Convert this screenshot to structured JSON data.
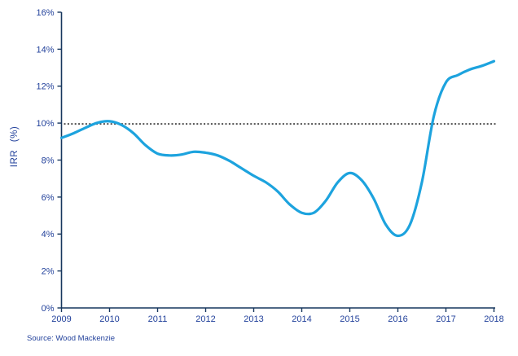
{
  "chart": {
    "y_axis_title": "IRR (%)",
    "source_note": "Source: Wood Mackenzie",
    "colors": {
      "series_line": "#1da3de",
      "axis": "#17375e",
      "tick_label": "#22419b",
      "reference_line": "#4d4d4d",
      "background": "#ffffff"
    }
  },
  "chart_data": {
    "type": "line",
    "title": "",
    "xlabel": "",
    "ylabel": "IRR (%)",
    "ylim": [
      0,
      16
    ],
    "xlim": [
      2009,
      2018
    ],
    "grid": false,
    "legend": "none",
    "yticks": [
      0,
      2,
      4,
      6,
      8,
      10,
      12,
      14,
      16
    ],
    "ytick_labels": [
      "0%",
      "2%",
      "4%",
      "6%",
      "8%",
      "10%",
      "12%",
      "14%",
      "16%"
    ],
    "xticks": [
      2009,
      2010,
      2011,
      2012,
      2013,
      2014,
      2015,
      2016,
      2017,
      2018
    ],
    "xtick_labels": [
      "2009",
      "2010",
      "2011",
      "2012",
      "2013",
      "2014",
      "2015",
      "2016",
      "2017",
      "2018"
    ],
    "reference_line": {
      "value": 10,
      "style": "dotted"
    },
    "series": [
      {
        "name": "IRR",
        "points": [
          [
            2009.0,
            9.2
          ],
          [
            2009.25,
            9.45
          ],
          [
            2009.5,
            9.75
          ],
          [
            2009.75,
            10.02
          ],
          [
            2010.0,
            10.1
          ],
          [
            2010.25,
            9.9
          ],
          [
            2010.5,
            9.45
          ],
          [
            2010.75,
            8.8
          ],
          [
            2011.0,
            8.35
          ],
          [
            2011.25,
            8.25
          ],
          [
            2011.5,
            8.3
          ],
          [
            2011.75,
            8.45
          ],
          [
            2012.0,
            8.4
          ],
          [
            2012.25,
            8.25
          ],
          [
            2012.5,
            7.95
          ],
          [
            2012.75,
            7.55
          ],
          [
            2013.0,
            7.15
          ],
          [
            2013.25,
            6.8
          ],
          [
            2013.5,
            6.3
          ],
          [
            2013.75,
            5.6
          ],
          [
            2014.0,
            5.15
          ],
          [
            2014.25,
            5.15
          ],
          [
            2014.5,
            5.8
          ],
          [
            2014.75,
            6.8
          ],
          [
            2015.0,
            7.3
          ],
          [
            2015.25,
            6.9
          ],
          [
            2015.5,
            5.9
          ],
          [
            2015.75,
            4.5
          ],
          [
            2016.0,
            3.9
          ],
          [
            2016.25,
            4.5
          ],
          [
            2016.5,
            6.8
          ],
          [
            2016.75,
            10.4
          ],
          [
            2017.0,
            12.2
          ],
          [
            2017.25,
            12.6
          ],
          [
            2017.5,
            12.9
          ],
          [
            2017.75,
            13.1
          ],
          [
            2018.0,
            13.35
          ]
        ]
      }
    ]
  }
}
